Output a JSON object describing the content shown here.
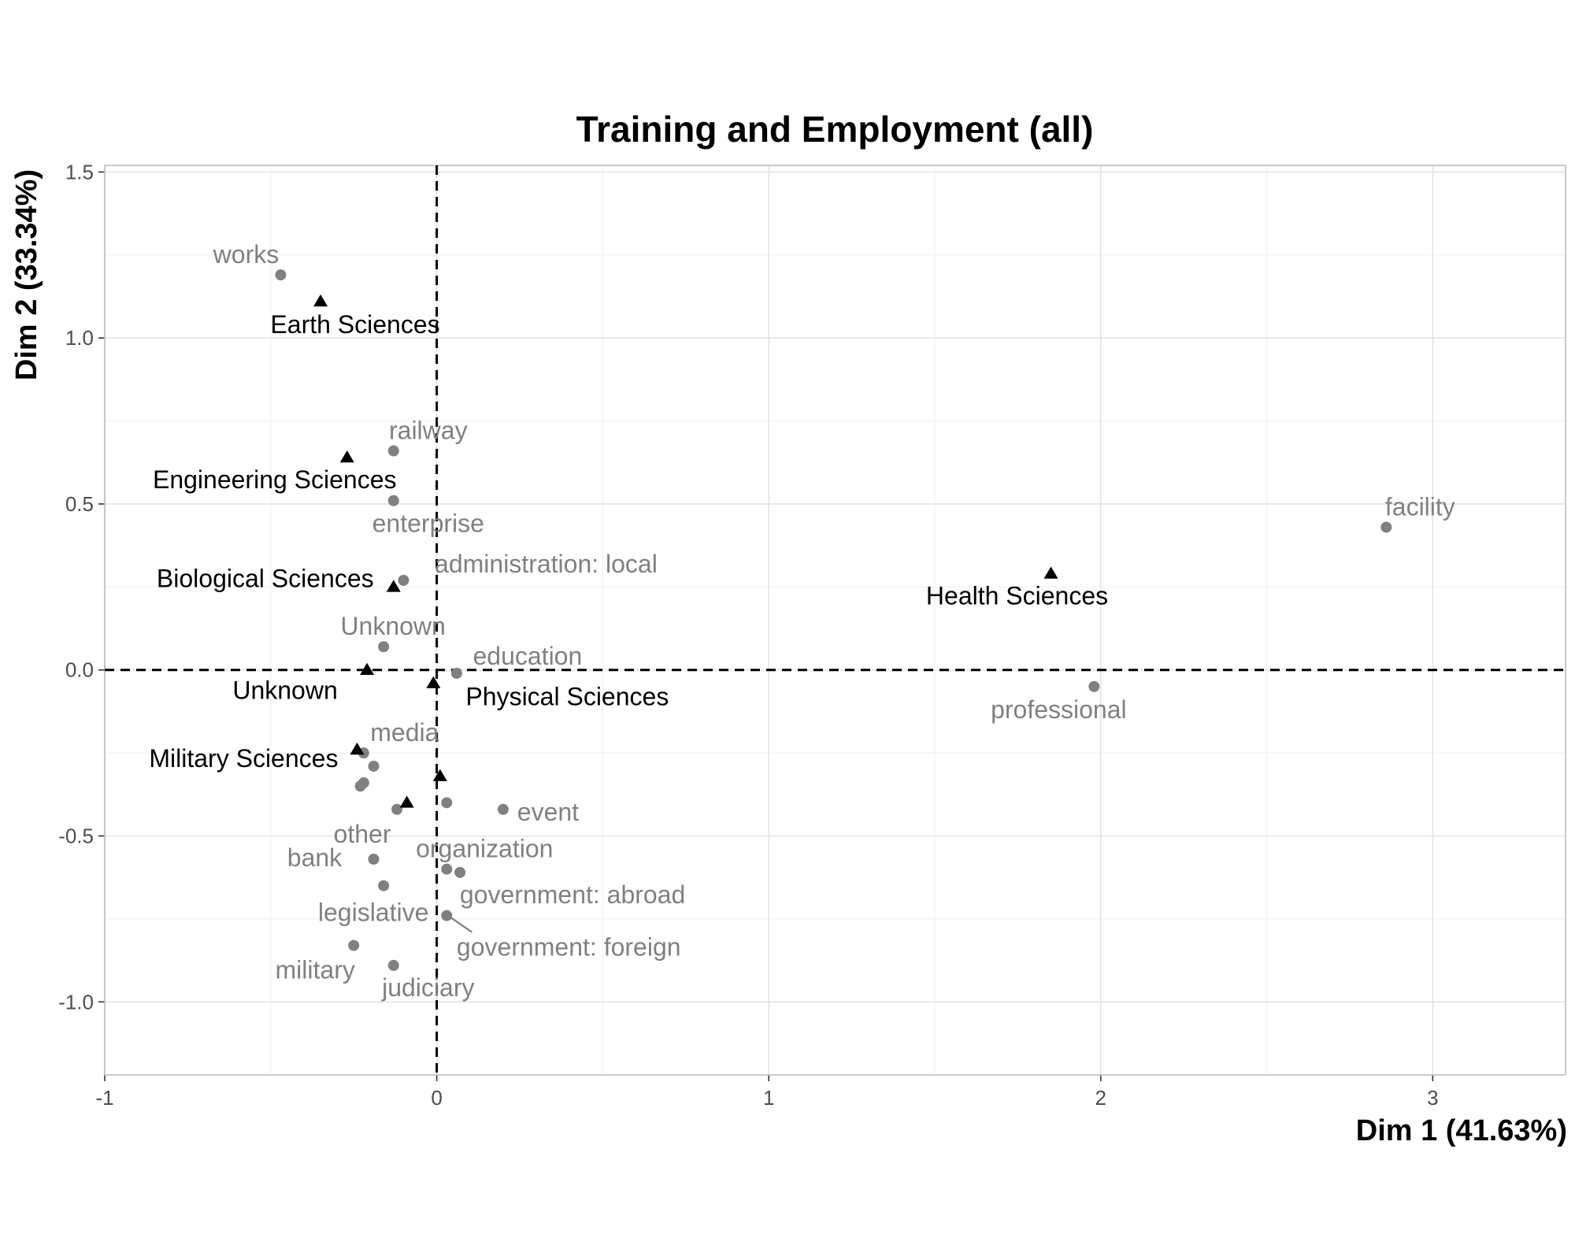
{
  "chart_data": {
    "type": "scatter",
    "title": "Training and Employment (all)",
    "xlabel": "Dim 1 (41.63%)",
    "ylabel": "Dim 2 (33.34%)",
    "xlim": [
      -1,
      3.4
    ],
    "ylim": [
      -1.22,
      1.52
    ],
    "x_ticks": [
      -1,
      0,
      1,
      2,
      3
    ],
    "x_tick_labels": [
      "-1",
      "0",
      "1",
      "2",
      "3"
    ],
    "y_ticks": [
      -1.0,
      -0.5,
      0.0,
      0.5,
      1.0,
      1.5
    ],
    "y_tick_labels": [
      "-1.0",
      "-0.5",
      "0.0",
      "0.5",
      "1.0",
      "1.5"
    ],
    "grid": true,
    "reference_lines": {
      "x": 0,
      "y": 0,
      "style": "dashed"
    },
    "colors": {
      "row": "#000000",
      "col": "#808080",
      "grid": "#e3e3e3"
    },
    "row_points": [
      {
        "label": "Earth Sciences",
        "x": -0.35,
        "y": 1.11,
        "show_label": true
      },
      {
        "label": "Engineering Sciences",
        "x": -0.27,
        "y": 0.64,
        "show_label": true
      },
      {
        "label": "Biological Sciences",
        "x": -0.13,
        "y": 0.25,
        "show_label": true
      },
      {
        "label": "Health Sciences",
        "x": 1.85,
        "y": 0.29,
        "show_label": true
      },
      {
        "label": "Unknown",
        "x": -0.21,
        "y": 0.0,
        "show_label": true
      },
      {
        "label": "Physical Sciences",
        "x": -0.01,
        "y": -0.04,
        "show_label": true
      },
      {
        "label": "Military Sciences",
        "x": -0.24,
        "y": -0.24,
        "show_label": true
      },
      {
        "label": "",
        "x": 0.01,
        "y": -0.32,
        "show_label": false
      },
      {
        "label": "",
        "x": -0.09,
        "y": -0.4,
        "show_label": false
      }
    ],
    "col_points": [
      {
        "label": "works",
        "x": -0.47,
        "y": 1.19
      },
      {
        "label": "railway",
        "x": -0.13,
        "y": 0.66
      },
      {
        "label": "enterprise",
        "x": -0.13,
        "y": 0.51
      },
      {
        "label": "administration: local",
        "x": -0.1,
        "y": 0.27
      },
      {
        "label": "Unknown",
        "x": -0.16,
        "y": 0.07
      },
      {
        "label": "education",
        "x": 0.06,
        "y": -0.01
      },
      {
        "label": "facility",
        "x": 2.86,
        "y": 0.43
      },
      {
        "label": "professional",
        "x": 1.98,
        "y": -0.05
      },
      {
        "label": "media",
        "x": -0.22,
        "y": -0.25
      },
      {
        "label": "",
        "x": -0.19,
        "y": -0.29
      },
      {
        "label": "",
        "x": -0.22,
        "y": -0.34
      },
      {
        "label": "",
        "x": -0.23,
        "y": -0.35
      },
      {
        "label": "other",
        "x": -0.12,
        "y": -0.42
      },
      {
        "label": "",
        "x": 0.03,
        "y": -0.4
      },
      {
        "label": "event",
        "x": 0.2,
        "y": -0.42
      },
      {
        "label": "organization",
        "x": 0.03,
        "y": -0.6
      },
      {
        "label": "government: abroad",
        "x": 0.07,
        "y": -0.61
      },
      {
        "label": "bank",
        "x": -0.19,
        "y": -0.57
      },
      {
        "label": "legislative",
        "x": -0.16,
        "y": -0.65
      },
      {
        "label": "government: foreign",
        "x": 0.03,
        "y": -0.74
      },
      {
        "label": "military",
        "x": -0.25,
        "y": -0.83
      },
      {
        "label": "judiciary",
        "x": -0.13,
        "y": -0.89
      }
    ]
  }
}
